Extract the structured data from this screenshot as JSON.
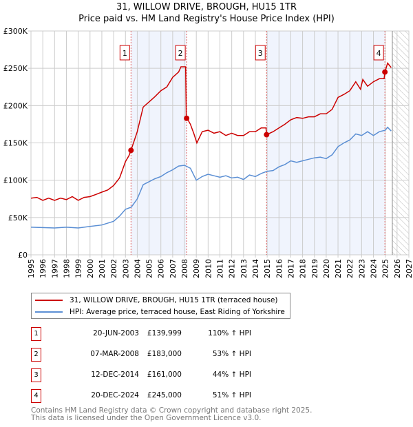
{
  "title_line1": "31, WILLOW DRIVE, BROUGH, HU15 1TR",
  "title_line2": "Price paid vs. HM Land Registry's House Price Index (HPI)",
  "chart_data": {
    "type": "line",
    "title": "31, WILLOW DRIVE, BROUGH, HU15 1TR — Price paid vs. HM Land Registry's House Price Index (HPI)",
    "xlabel": "",
    "ylabel": "",
    "xlim": [
      1995,
      2027
    ],
    "ylim": [
      0,
      300000
    ],
    "x_ticks": [
      "1995",
      "1996",
      "1997",
      "1998",
      "1999",
      "2000",
      "2001",
      "2002",
      "2003",
      "2004",
      "2005",
      "2006",
      "2007",
      "2008",
      "2009",
      "2010",
      "2011",
      "2012",
      "2013",
      "2014",
      "2015",
      "2016",
      "2017",
      "2018",
      "2019",
      "2020",
      "2021",
      "2022",
      "2023",
      "2024",
      "2025",
      "2026",
      "2027"
    ],
    "y_ticks": [
      {
        "v": 0,
        "label": "£0"
      },
      {
        "v": 50000,
        "label": "£50K"
      },
      {
        "v": 100000,
        "label": "£100K"
      },
      {
        "v": 150000,
        "label": "£150K"
      },
      {
        "v": 200000,
        "label": "£200K"
      },
      {
        "v": 250000,
        "label": "£250K"
      },
      {
        "v": 300000,
        "label": "£300K"
      }
    ],
    "grid": true,
    "shaded_periods": [
      [
        2003.47,
        2008.18
      ],
      [
        2014.95,
        2024.97
      ]
    ],
    "forecast_from": 2025.6,
    "series": [
      {
        "name": "31, WILLOW DRIVE, BROUGH, HU15 1TR (terraced house)",
        "color": "#cc0000",
        "points": [
          [
            1995,
            76
          ],
          [
            1995.5,
            77
          ],
          [
            1996,
            73
          ],
          [
            1996.5,
            76
          ],
          [
            1997,
            73
          ],
          [
            1997.5,
            76
          ],
          [
            1998,
            74
          ],
          [
            1998.5,
            78
          ],
          [
            1999,
            73
          ],
          [
            1999.5,
            77
          ],
          [
            2000,
            78
          ],
          [
            2000.5,
            81
          ],
          [
            2001,
            84
          ],
          [
            2001.5,
            87
          ],
          [
            2002,
            93
          ],
          [
            2002.5,
            103
          ],
          [
            2003,
            125
          ],
          [
            2003.3,
            133
          ],
          [
            2003.47,
            140
          ],
          [
            2004,
            165
          ],
          [
            2004.5,
            198
          ],
          [
            2005,
            205
          ],
          [
            2005.5,
            212
          ],
          [
            2006,
            220
          ],
          [
            2006.5,
            225
          ],
          [
            2007,
            238
          ],
          [
            2007.5,
            245
          ],
          [
            2007.7,
            252
          ],
          [
            2008.1,
            252
          ],
          [
            2008.15,
            185
          ],
          [
            2008.5,
            175
          ],
          [
            2008.8,
            162
          ],
          [
            2009.05,
            150
          ],
          [
            2009.5,
            165
          ],
          [
            2010,
            167
          ],
          [
            2010.5,
            163
          ],
          [
            2011,
            165
          ],
          [
            2011.5,
            160
          ],
          [
            2012,
            163
          ],
          [
            2012.5,
            160
          ],
          [
            2013,
            160
          ],
          [
            2013.5,
            165
          ],
          [
            2014,
            165
          ],
          [
            2014.5,
            170
          ],
          [
            2014.9,
            170
          ],
          [
            2014.95,
            161
          ],
          [
            2015.5,
            165
          ],
          [
            2016,
            170
          ],
          [
            2016.5,
            175
          ],
          [
            2017,
            181
          ],
          [
            2017.5,
            184
          ],
          [
            2018,
            183
          ],
          [
            2018.5,
            185
          ],
          [
            2019,
            185
          ],
          [
            2019.5,
            189
          ],
          [
            2020,
            189
          ],
          [
            2020.5,
            195
          ],
          [
            2021,
            211
          ],
          [
            2021.5,
            215
          ],
          [
            2022,
            220
          ],
          [
            2022.5,
            232
          ],
          [
            2022.9,
            222
          ],
          [
            2023.1,
            235
          ],
          [
            2023.5,
            226
          ],
          [
            2024,
            232
          ],
          [
            2024.5,
            236
          ],
          [
            2024.9,
            236
          ],
          [
            2024.97,
            245
          ],
          [
            2025.2,
            257
          ],
          [
            2025.5,
            251
          ]
        ]
      },
      {
        "name": "HPI: Average price, terraced house, East Riding of Yorkshire",
        "color": "#5b8fd4",
        "points": [
          [
            1995,
            37
          ],
          [
            1997,
            36
          ],
          [
            1998,
            37
          ],
          [
            1999,
            36
          ],
          [
            2000,
            38
          ],
          [
            2001,
            40
          ],
          [
            2002,
            45
          ],
          [
            2002.5,
            52
          ],
          [
            2003,
            61
          ],
          [
            2003.5,
            64
          ],
          [
            2004,
            75
          ],
          [
            2004.5,
            94
          ],
          [
            2005,
            98
          ],
          [
            2005.5,
            102
          ],
          [
            2006,
            105
          ],
          [
            2006.5,
            110
          ],
          [
            2007,
            114
          ],
          [
            2007.5,
            119
          ],
          [
            2008,
            120
          ],
          [
            2008.5,
            116
          ],
          [
            2009,
            100
          ],
          [
            2009.5,
            105
          ],
          [
            2010,
            108
          ],
          [
            2010.5,
            106
          ],
          [
            2011,
            104
          ],
          [
            2011.5,
            106
          ],
          [
            2012,
            103
          ],
          [
            2012.5,
            104
          ],
          [
            2013,
            101
          ],
          [
            2013.5,
            107
          ],
          [
            2014,
            105
          ],
          [
            2014.5,
            109
          ],
          [
            2015,
            112
          ],
          [
            2015.5,
            113
          ],
          [
            2016,
            118
          ],
          [
            2016.5,
            121
          ],
          [
            2017,
            126
          ],
          [
            2017.5,
            124
          ],
          [
            2018,
            126
          ],
          [
            2018.5,
            128
          ],
          [
            2019,
            130
          ],
          [
            2019.5,
            131
          ],
          [
            2020,
            129
          ],
          [
            2020.5,
            134
          ],
          [
            2021,
            145
          ],
          [
            2021.5,
            150
          ],
          [
            2022,
            154
          ],
          [
            2022.5,
            162
          ],
          [
            2023,
            160
          ],
          [
            2023.5,
            165
          ],
          [
            2024,
            160
          ],
          [
            2024.5,
            165
          ],
          [
            2025,
            167
          ],
          [
            2025.2,
            171
          ],
          [
            2025.5,
            166
          ]
        ]
      }
    ],
    "point_units": "x = year, y = £ thousands",
    "sales": [
      {
        "n": "1",
        "x": 2003.47,
        "price": 139999
      },
      {
        "n": "2",
        "x": 2008.18,
        "price": 183000
      },
      {
        "n": "3",
        "x": 2014.95,
        "price": 161000
      },
      {
        "n": "4",
        "x": 2024.97,
        "price": 245000
      }
    ]
  },
  "legend": {
    "red": "31, WILLOW DRIVE, BROUGH, HU15 1TR (terraced house)",
    "blue": "HPI: Average price, terraced house, East Riding of Yorkshire"
  },
  "transactions": [
    {
      "n": "1",
      "date": "20-JUN-2003",
      "price": "£139,999",
      "hpi": "110% ↑ HPI"
    },
    {
      "n": "2",
      "date": "07-MAR-2008",
      "price": "£183,000",
      "hpi": "53% ↑ HPI"
    },
    {
      "n": "3",
      "date": "12-DEC-2014",
      "price": "£161,000",
      "hpi": "44% ↑ HPI"
    },
    {
      "n": "4",
      "date": "20-DEC-2024",
      "price": "£245,000",
      "hpi": "51% ↑ HPI"
    }
  ],
  "footer1": "Contains HM Land Registry data © Crown copyright and database right 2025.",
  "footer2": "This data is licensed under the Open Government Licence v3.0."
}
